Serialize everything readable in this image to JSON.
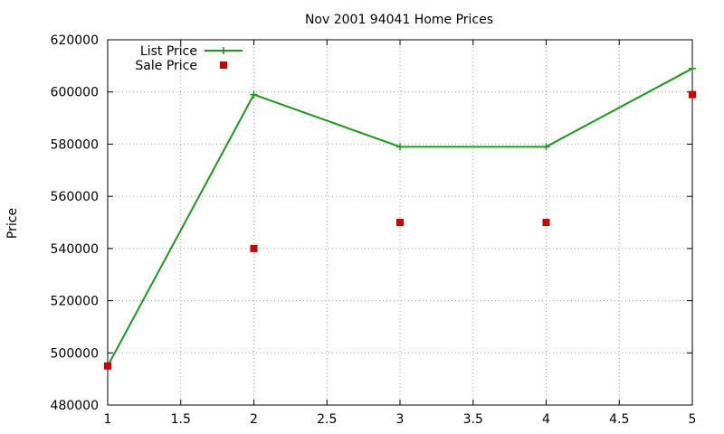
{
  "chart_data": {
    "type": "line",
    "title": "Nov 2001 94041 Home Prices",
    "xlabel": "",
    "ylabel": "Price",
    "xlim": [
      1,
      5
    ],
    "ylim": [
      480000,
      620000
    ],
    "x_ticks": [
      1,
      1.5,
      2,
      2.5,
      3,
      3.5,
      4,
      4.5,
      5
    ],
    "y_ticks": [
      480000,
      500000,
      520000,
      540000,
      560000,
      580000,
      600000,
      620000
    ],
    "grid": true,
    "legend_position": "top-left",
    "series": [
      {
        "name": "List Price",
        "style": "linespoints",
        "marker": "plus",
        "color": "#1a9a1a",
        "x": [
          1,
          2,
          3,
          4,
          5
        ],
        "y": [
          495000,
          599000,
          579000,
          579000,
          609000
        ]
      },
      {
        "name": "Sale Price",
        "style": "points",
        "marker": "square",
        "color": "#cc0000",
        "x": [
          1,
          2,
          3,
          4,
          5
        ],
        "y": [
          495000,
          540000,
          550000,
          550000,
          599000
        ]
      }
    ]
  }
}
